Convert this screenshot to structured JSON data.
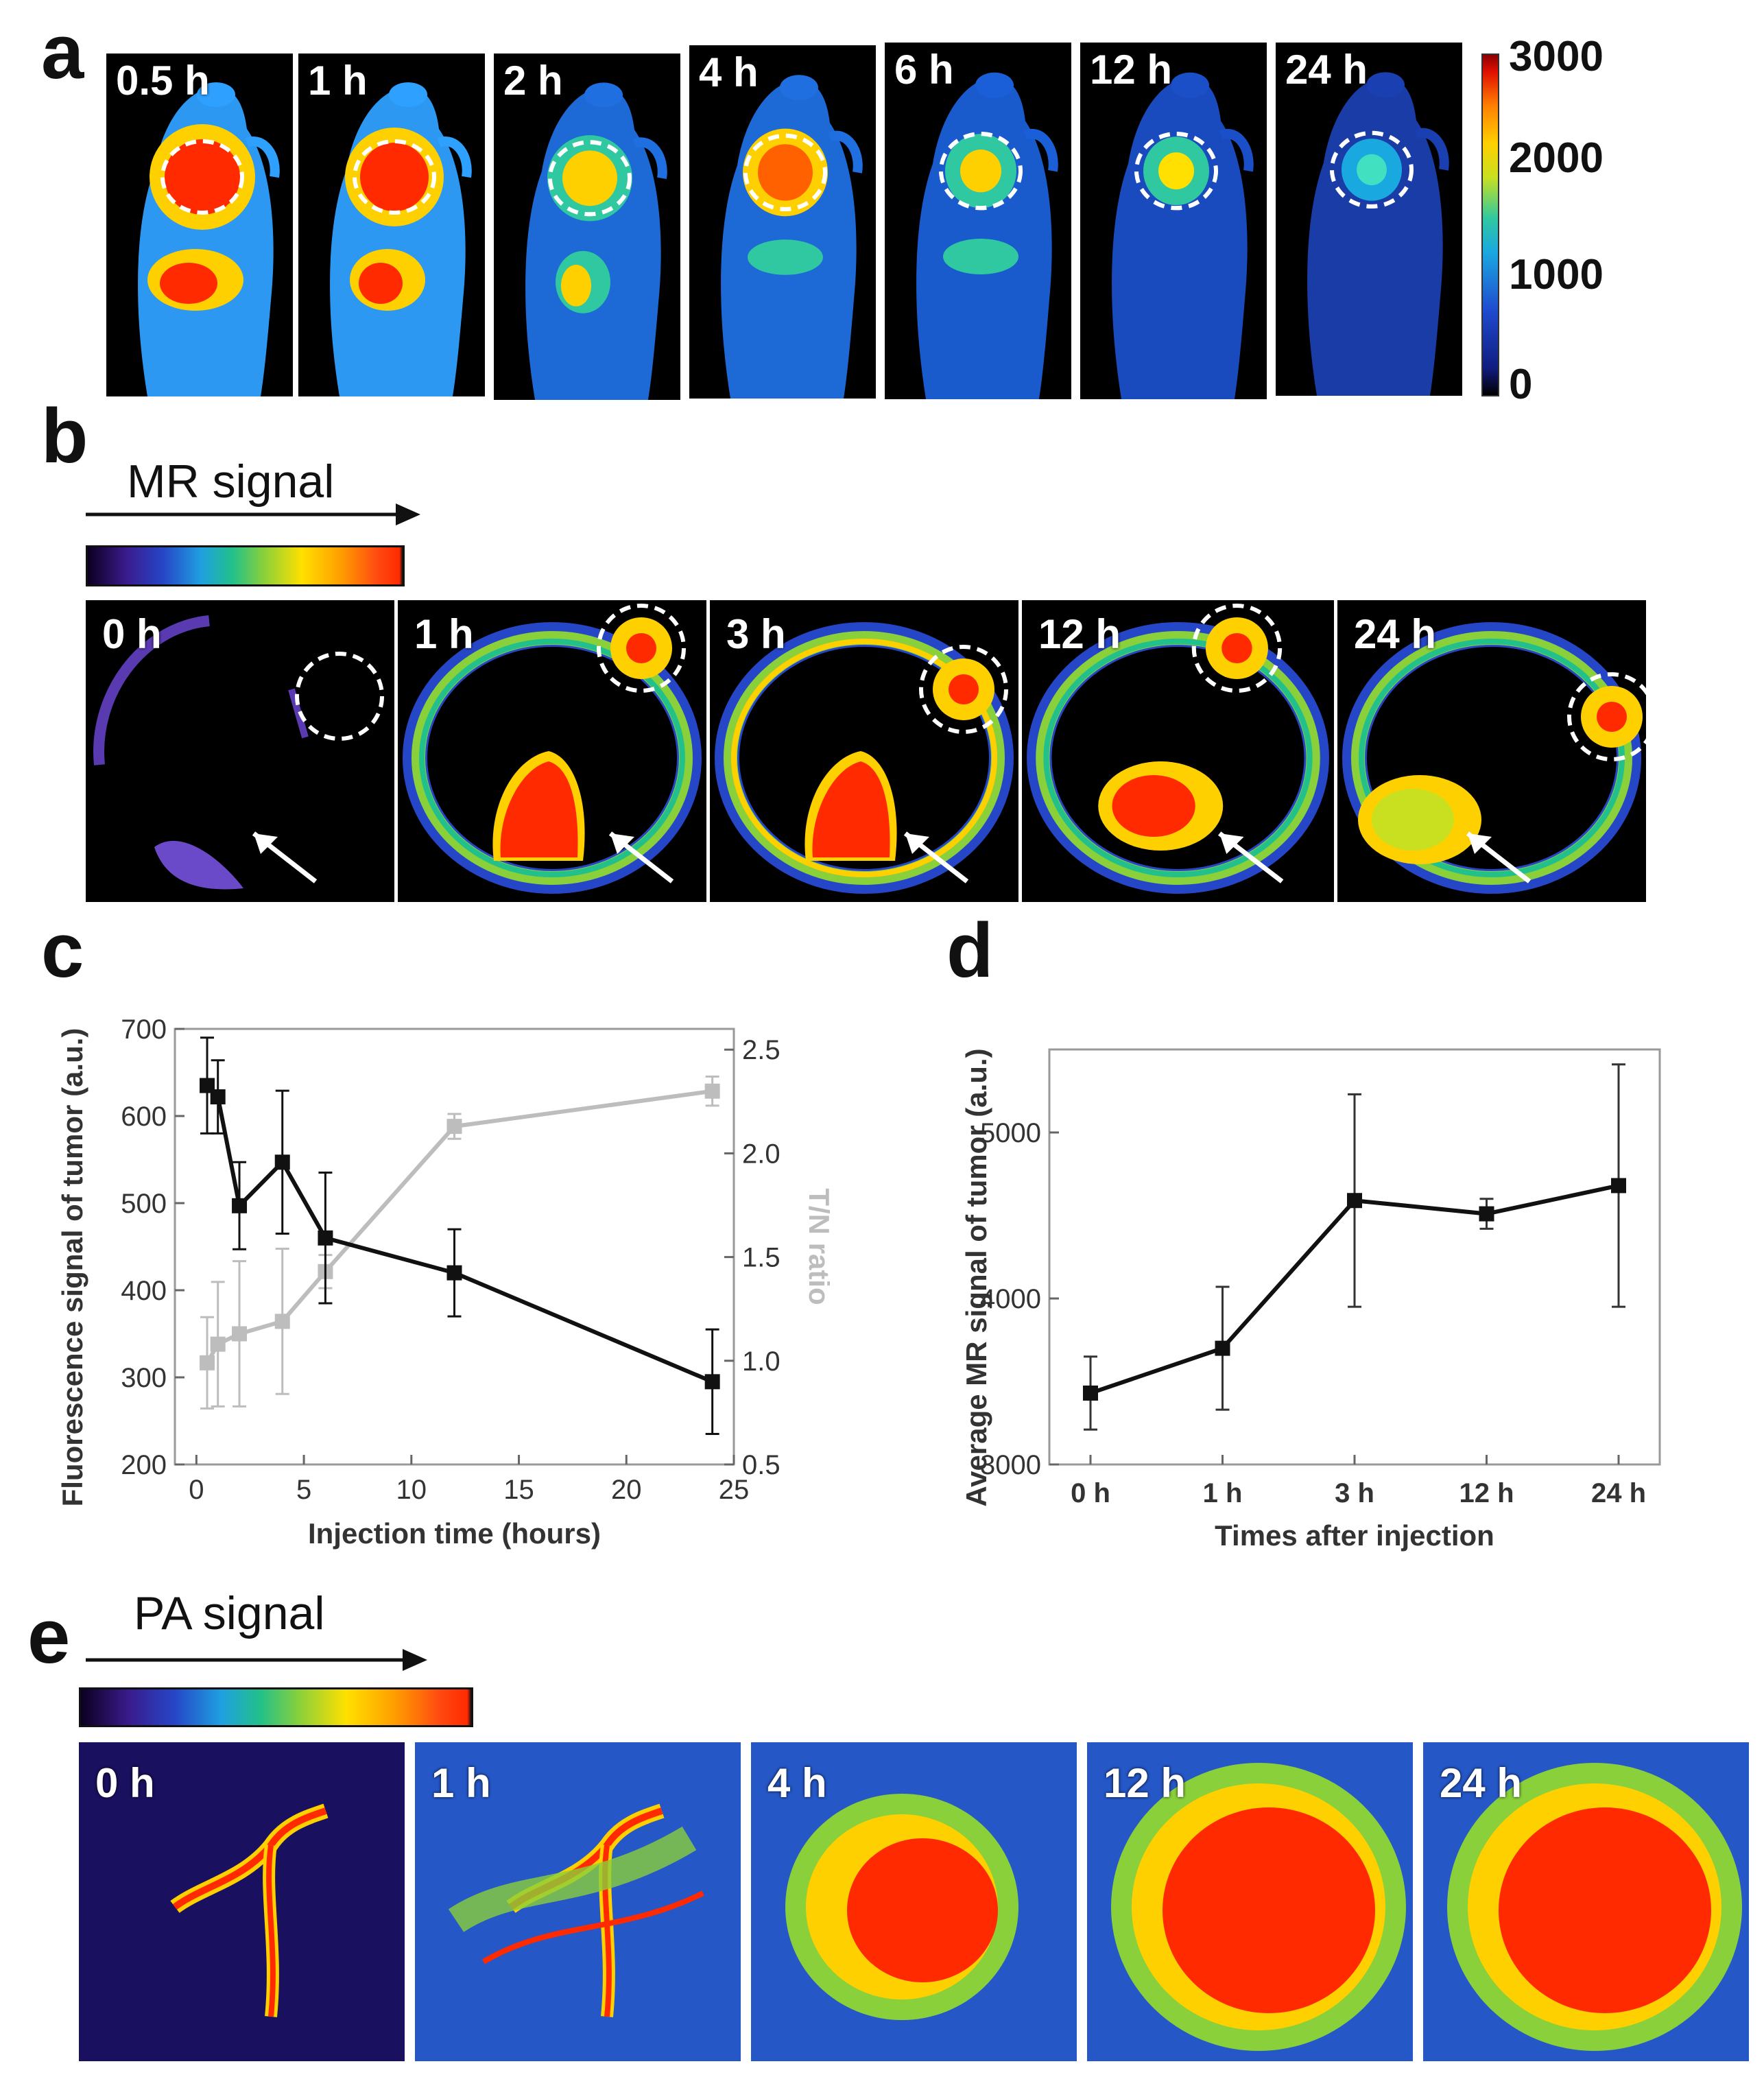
{
  "panel_labels": {
    "a": "a",
    "b": "b",
    "c": "c",
    "d": "d",
    "e": "e"
  },
  "panel_a": {
    "time_labels": [
      "0.5 h",
      "1 h",
      "2 h",
      "4 h",
      "6 h",
      "12 h",
      "24 h"
    ],
    "colorbar_ticks": [
      "3000",
      "2000",
      "1000",
      "0"
    ]
  },
  "panel_b": {
    "title": "MR signal",
    "time_labels": [
      "0 h",
      "1 h",
      "3 h",
      "12 h",
      "24 h"
    ]
  },
  "panel_e": {
    "title": "PA signal",
    "time_labels": [
      "0 h",
      "1 h",
      "4 h",
      "12 h",
      "24 h"
    ]
  },
  "colors": {
    "primary": "#111111",
    "secondary": "#bdbdbd",
    "circle": "#ffffff"
  },
  "chart_data": [
    {
      "panel": "c",
      "type": "line",
      "xlabel": "Injection time (hours)",
      "ylabel": "Fluorescence signal of tumor (a.u.)",
      "y2label": "T/N ratio",
      "xlim": [
        -1,
        25
      ],
      "ylim": [
        200,
        700
      ],
      "y2lim": [
        0.5,
        2.6
      ],
      "xticks": [
        "0",
        "5",
        "10",
        "15",
        "20",
        "25"
      ],
      "yticks": [
        "200",
        "300",
        "400",
        "500",
        "600",
        "700"
      ],
      "y2ticks": [
        "0.5",
        "1.0",
        "1.5",
        "2.0",
        "2.5"
      ],
      "series": [
        {
          "name": "Fluorescence signal",
          "axis": "left",
          "color": "#111111",
          "x": [
            0.5,
            1,
            2,
            4,
            6,
            12,
            24
          ],
          "y": [
            635,
            622,
            497,
            547,
            460,
            420,
            295
          ],
          "err": [
            55,
            42,
            50,
            82,
            75,
            50,
            60
          ]
        },
        {
          "name": "T/N ratio",
          "axis": "right",
          "color": "#bdbdbd",
          "x": [
            0.5,
            1,
            2,
            4,
            6,
            12,
            24
          ],
          "y": [
            0.99,
            1.08,
            1.13,
            1.19,
            1.43,
            2.13,
            2.3
          ],
          "err": [
            0.22,
            0.3,
            0.35,
            0.35,
            0.08,
            0.06,
            0.07
          ]
        }
      ]
    },
    {
      "panel": "d",
      "type": "line",
      "xlabel": "Times after injection",
      "ylabel": "Average MR signal of tumor (a.u.)",
      "categories": [
        "0 h",
        "1 h",
        "3 h",
        "12 h",
        "24 h"
      ],
      "ylim": [
        3000,
        5500
      ],
      "yticks": [
        "3000",
        "4000",
        "5000"
      ],
      "series": [
        {
          "name": "MR signal",
          "color": "#111111",
          "values": [
            3430,
            3700,
            4590,
            4510,
            4680
          ],
          "err": [
            220,
            370,
            640,
            90,
            730
          ]
        }
      ]
    }
  ]
}
